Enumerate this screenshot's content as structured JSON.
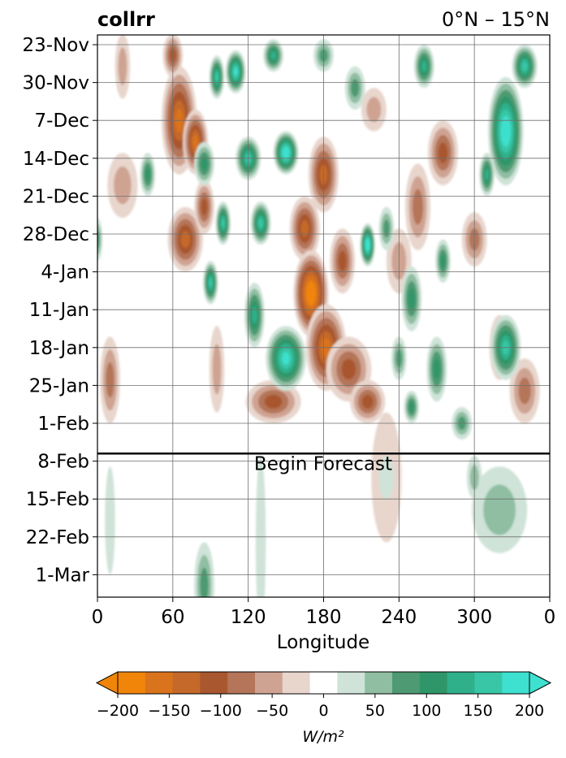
{
  "chart_data": {
    "type": "heatmap",
    "title_left": "collrr",
    "title_right": "0°N – 15°N",
    "xlabel": "Longitude",
    "x_ticks": [
      "0",
      "60",
      "120",
      "180",
      "240",
      "300",
      "0"
    ],
    "xlim": [
      0,
      360
    ],
    "y_ticks": [
      "23-Nov",
      "30-Nov",
      "7-Dec",
      "14-Dec",
      "21-Dec",
      "28-Dec",
      "4-Jan",
      "11-Jan",
      "18-Jan",
      "25-Jan",
      "1-Feb",
      "8-Feb",
      "15-Feb",
      "22-Feb",
      "1-Mar"
    ],
    "forecast_label": "Begin Forecast",
    "forecast_line_after": "1-Feb",
    "grid": true,
    "colorbar": {
      "unit": "W/m²",
      "tick_labels": [
        "−200",
        "−150",
        "−100",
        "−50",
        "0",
        "50",
        "100",
        "150",
        "200"
      ],
      "levels": [
        -200,
        -175,
        -150,
        -125,
        -100,
        -75,
        -50,
        -25,
        25,
        50,
        75,
        100,
        125,
        150,
        175,
        200
      ],
      "colors": [
        "#f0850a",
        "#d9731c",
        "#c4692a",
        "#a9572e",
        "#b47559",
        "#cfa392",
        "#e8d6cd",
        "#ffffff",
        "#cfe3d8",
        "#8fbea2",
        "#4e9a72",
        "#2f9669",
        "#2fb08b",
        "#39c6a6",
        "#3ee0cf"
      ],
      "extend": "both"
    },
    "blobs": [
      {
        "lon": 65,
        "date": 14,
        "dlon": 14,
        "ddate": 10,
        "v": -160
      },
      {
        "lon": 78,
        "date": 18,
        "dlon": 10,
        "ddate": 6,
        "v": -150
      },
      {
        "lon": 70,
        "date": 36,
        "dlon": 14,
        "ddate": 6,
        "v": -130
      },
      {
        "lon": 85,
        "date": 30,
        "dlon": 8,
        "ddate": 5,
        "v": -120
      },
      {
        "lon": 60,
        "date": 2,
        "dlon": 8,
        "ddate": 4,
        "v": -100
      },
      {
        "lon": 165,
        "date": 34,
        "dlon": 12,
        "ddate": 6,
        "v": -130
      },
      {
        "lon": 180,
        "date": 24,
        "dlon": 12,
        "ddate": 7,
        "v": -130
      },
      {
        "lon": 170,
        "date": 46,
        "dlon": 14,
        "ddate": 8,
        "v": -210
      },
      {
        "lon": 182,
        "date": 56,
        "dlon": 16,
        "ddate": 8,
        "v": -170
      },
      {
        "lon": 195,
        "date": 40,
        "dlon": 10,
        "ddate": 6,
        "v": -120
      },
      {
        "lon": 200,
        "date": 60,
        "dlon": 18,
        "ddate": 6,
        "v": -120
      },
      {
        "lon": 140,
        "date": 66,
        "dlon": 22,
        "ddate": 4,
        "v": -100
      },
      {
        "lon": 215,
        "date": 66,
        "dlon": 14,
        "ddate": 4,
        "v": -100
      },
      {
        "lon": 95,
        "date": 60,
        "dlon": 6,
        "ddate": 8,
        "v": -70
      },
      {
        "lon": 20,
        "date": 4,
        "dlon": 6,
        "ddate": 6,
        "v": -50
      },
      {
        "lon": 20,
        "date": 26,
        "dlon": 12,
        "ddate": 6,
        "v": -60
      },
      {
        "lon": 10,
        "date": 62,
        "dlon": 8,
        "ddate": 8,
        "v": -80
      },
      {
        "lon": 240,
        "date": 40,
        "dlon": 10,
        "ddate": 6,
        "v": -60
      },
      {
        "lon": 255,
        "date": 30,
        "dlon": 10,
        "ddate": 8,
        "v": -90
      },
      {
        "lon": 275,
        "date": 20,
        "dlon": 12,
        "ddate": 6,
        "v": -110
      },
      {
        "lon": 300,
        "date": 36,
        "dlon": 10,
        "ddate": 5,
        "v": -80
      },
      {
        "lon": 320,
        "date": 56,
        "dlon": 8,
        "ddate": 6,
        "v": -70
      },
      {
        "lon": 340,
        "date": 64,
        "dlon": 12,
        "ddate": 6,
        "v": -80
      },
      {
        "lon": 220,
        "date": 12,
        "dlon": 10,
        "ddate": 4,
        "v": -70
      },
      {
        "lon": 230,
        "date": 80,
        "dlon": 12,
        "ddate": 12,
        "v": -30
      },
      {
        "lon": 95,
        "date": 6,
        "dlon": 6,
        "ddate": 4,
        "v": 160
      },
      {
        "lon": 110,
        "date": 5,
        "dlon": 8,
        "ddate": 4,
        "v": 190
      },
      {
        "lon": 140,
        "date": 2,
        "dlon": 8,
        "ddate": 3,
        "v": 130
      },
      {
        "lon": 150,
        "date": 20,
        "dlon": 10,
        "ddate": 4,
        "v": 200
      },
      {
        "lon": 120,
        "date": 21,
        "dlon": 10,
        "ddate": 4,
        "v": 170
      },
      {
        "lon": 130,
        "date": 33,
        "dlon": 8,
        "ddate": 4,
        "v": 170
      },
      {
        "lon": 100,
        "date": 33,
        "dlon": 6,
        "ddate": 4,
        "v": 170
      },
      {
        "lon": 150,
        "date": 58,
        "dlon": 16,
        "ddate": 6,
        "v": 180
      },
      {
        "lon": 125,
        "date": 50,
        "dlon": 8,
        "ddate": 6,
        "v": 140
      },
      {
        "lon": 90,
        "date": 44,
        "dlon": 6,
        "ddate": 4,
        "v": 150
      },
      {
        "lon": 85,
        "date": 22,
        "dlon": 8,
        "ddate": 4,
        "v": 110
      },
      {
        "lon": 40,
        "date": 24,
        "dlon": 6,
        "ddate": 4,
        "v": 120
      },
      {
        "lon": 325,
        "date": 16,
        "dlon": 14,
        "ddate": 10,
        "v": 200
      },
      {
        "lon": 340,
        "date": 4,
        "dlon": 10,
        "ddate": 4,
        "v": 160
      },
      {
        "lon": 310,
        "date": 24,
        "dlon": 6,
        "ddate": 4,
        "v": 130
      },
      {
        "lon": 260,
        "date": 4,
        "dlon": 8,
        "ddate": 4,
        "v": 130
      },
      {
        "lon": 325,
        "date": 56,
        "dlon": 12,
        "ddate": 6,
        "v": 160
      },
      {
        "lon": 275,
        "date": 40,
        "dlon": 6,
        "ddate": 4,
        "v": 100
      },
      {
        "lon": 215,
        "date": 37,
        "dlon": 6,
        "ddate": 4,
        "v": 200
      },
      {
        "lon": 230,
        "date": 34,
        "dlon": 6,
        "ddate": 4,
        "v": 90
      },
      {
        "lon": 270,
        "date": 60,
        "dlon": 8,
        "ddate": 6,
        "v": 110
      },
      {
        "lon": 250,
        "date": 47,
        "dlon": 8,
        "ddate": 6,
        "v": 100
      },
      {
        "lon": 240,
        "date": 58,
        "dlon": 6,
        "ddate": 4,
        "v": 90
      },
      {
        "lon": 205,
        "date": 8,
        "dlon": 8,
        "ddate": 4,
        "v": 90
      },
      {
        "lon": 180,
        "date": 2,
        "dlon": 8,
        "ddate": 3,
        "v": 80
      },
      {
        "lon": 0,
        "date": 36,
        "dlon": 4,
        "ddate": 4,
        "v": 80
      },
      {
        "lon": 290,
        "date": 70,
        "dlon": 8,
        "ddate": 3,
        "v": 90
      },
      {
        "lon": 250,
        "date": 67,
        "dlon": 6,
        "ddate": 3,
        "v": 100
      },
      {
        "lon": 320,
        "date": 86,
        "dlon": 22,
        "ddate": 8,
        "v": 60
      },
      {
        "lon": 300,
        "date": 80,
        "dlon": 6,
        "ddate": 4,
        "v": 60
      },
      {
        "lon": 85,
        "date": 100,
        "dlon": 8,
        "ddate": 8,
        "v": 80
      },
      {
        "lon": 130,
        "date": 92,
        "dlon": 4,
        "ddate": 16,
        "v": 40
      },
      {
        "lon": 230,
        "date": 80,
        "dlon": 6,
        "ddate": 4,
        "v": 40
      },
      {
        "lon": 10,
        "date": 88,
        "dlon": 4,
        "ddate": 10,
        "v": 30
      }
    ]
  }
}
